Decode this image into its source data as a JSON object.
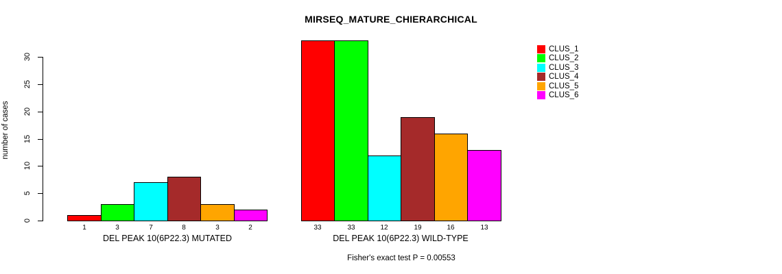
{
  "chart_data": {
    "type": "bar",
    "title": "MIRSEQ_MATURE_CHIERARCHICAL",
    "ylabel": "number of cases",
    "ylim": [
      0,
      33
    ],
    "yticks": [
      0,
      5,
      10,
      15,
      20,
      25,
      30
    ],
    "grid": false,
    "legend_position": "top-right",
    "clusters": [
      {
        "label": "CLUS_1",
        "color": "#FF0000"
      },
      {
        "label": "CLUS_2",
        "color": "#00FF00"
      },
      {
        "label": "CLUS_3",
        "color": "#00FFFF"
      },
      {
        "label": "CLUS_4",
        "color": "#A52A2A"
      },
      {
        "label": "CLUS_5",
        "color": "#FFA500"
      },
      {
        "label": "CLUS_6",
        "color": "#FF00FF"
      }
    ],
    "groups": [
      {
        "label": "DEL PEAK 10(6P22.3) MUTATED",
        "values": [
          1,
          3,
          7,
          8,
          3,
          2
        ]
      },
      {
        "label": "DEL PEAK 10(6P22.3) WILD-TYPE",
        "values": [
          33,
          33,
          12,
          19,
          16,
          13
        ]
      }
    ],
    "annotation": "Fisher's exact test P = 0.00553"
  }
}
